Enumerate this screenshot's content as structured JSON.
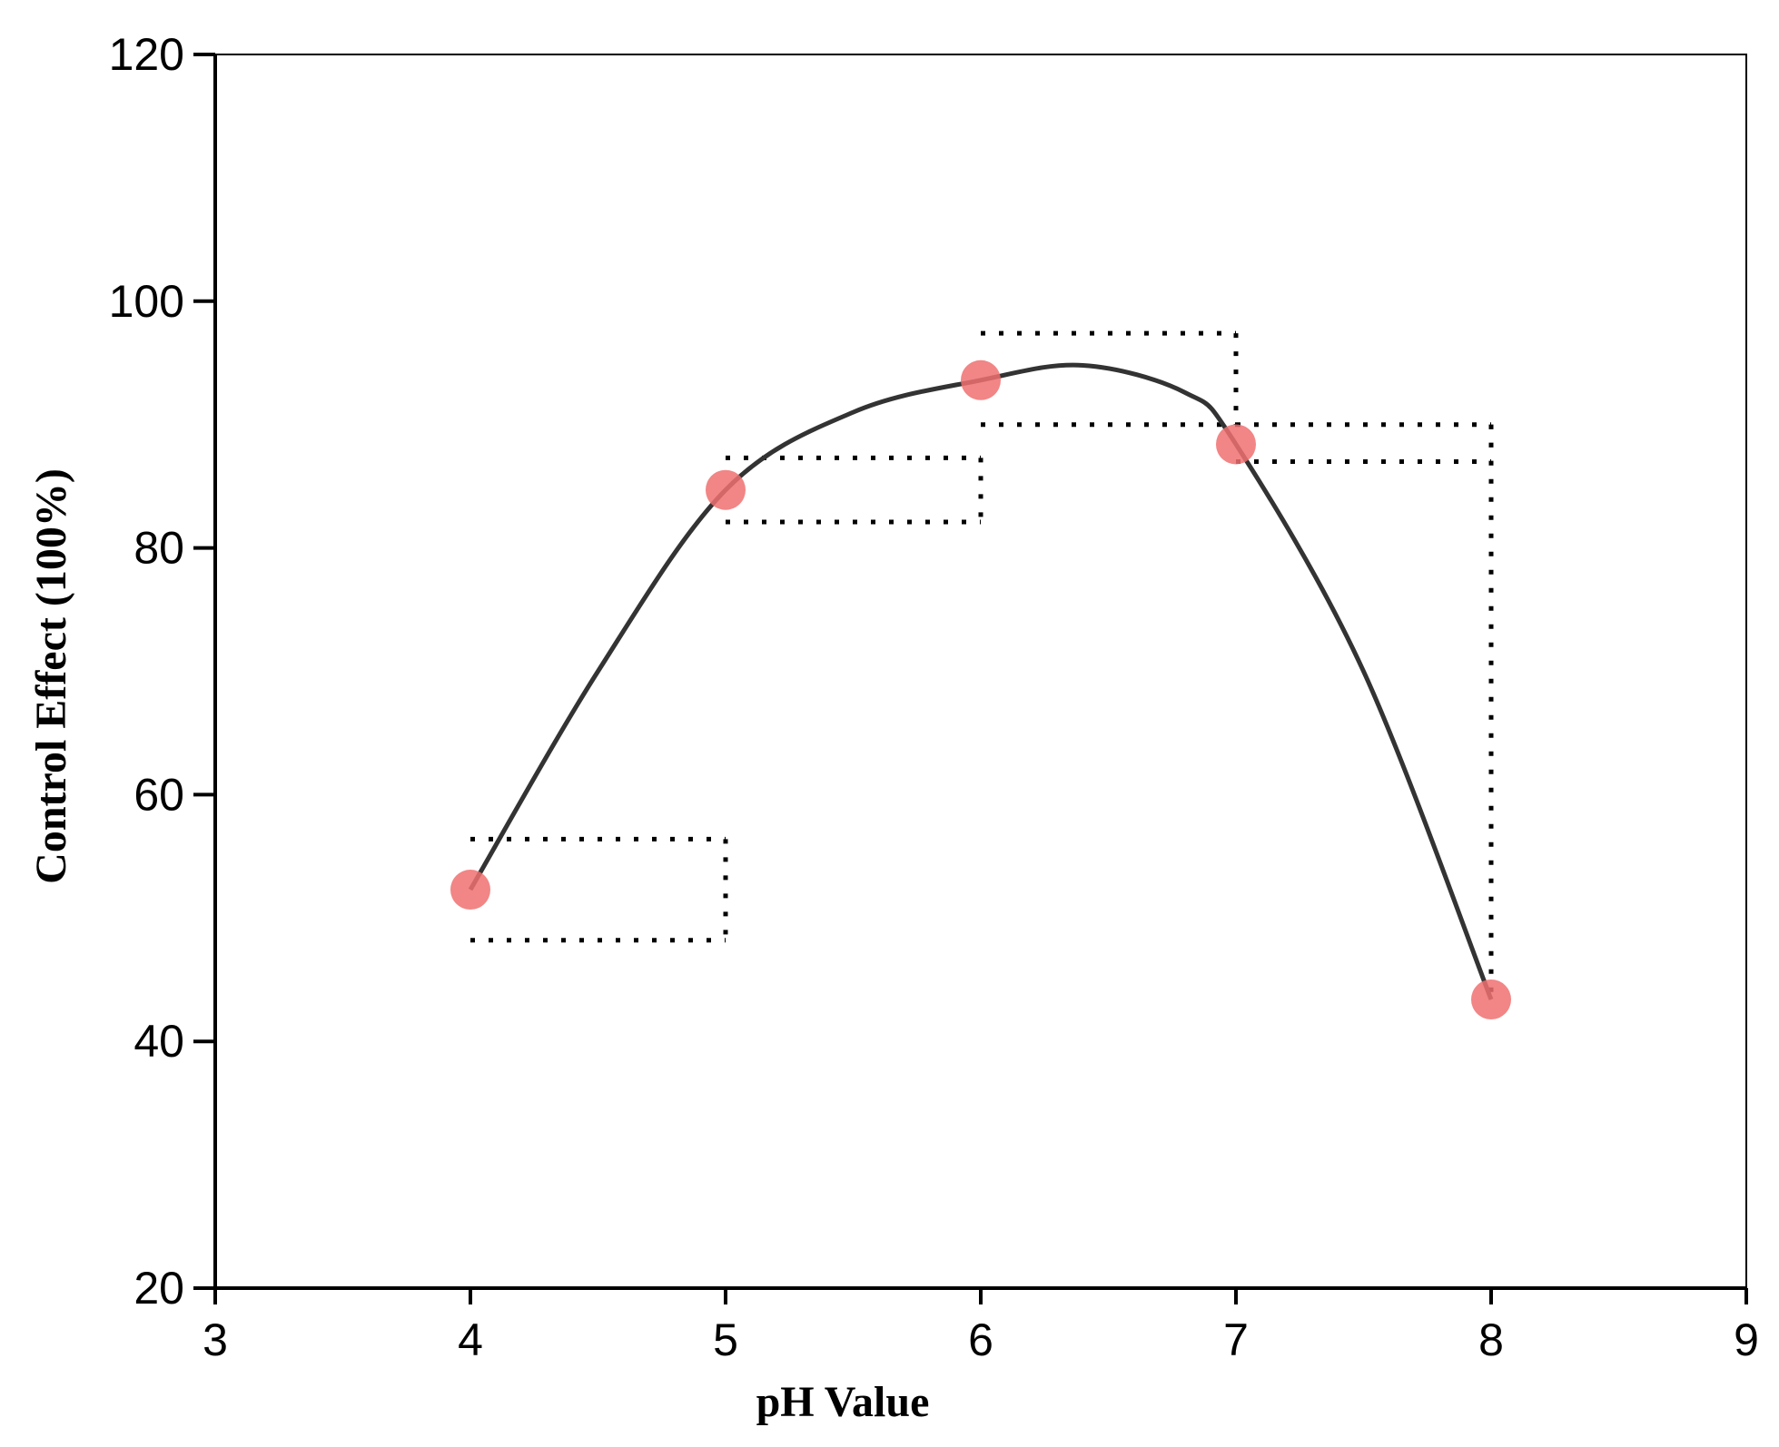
{
  "chart_data": {
    "type": "line",
    "title": "",
    "xlabel": "pH Value",
    "ylabel": "Control Effect (100%)",
    "xlim": [
      3,
      9
    ],
    "ylim": [
      20,
      120
    ],
    "xticks": [
      3,
      4,
      5,
      6,
      7,
      8,
      9
    ],
    "yticks": [
      20,
      40,
      60,
      80,
      100,
      120
    ],
    "grid": false,
    "legend": "none",
    "colors": {
      "points": "#f07070",
      "curve": "#333333",
      "error_lines": "#000000"
    },
    "series": [
      {
        "type": "scatter",
        "x": [
          4,
          5,
          6,
          7,
          8
        ],
        "y": [
          52.3,
          84.7,
          93.6,
          88.4,
          43.4
        ],
        "y_error_low": [
          48.2,
          82.1,
          90.0,
          87.0,
          43.4
        ],
        "y_error_high": [
          56.4,
          87.3,
          97.4,
          90.0,
          90.0
        ]
      },
      {
        "type": "fit-curve",
        "x": [
          4.0,
          4.5,
          5.0,
          5.5,
          6.0,
          6.4,
          6.8,
          7.0,
          7.5,
          8.0
        ],
        "y": [
          52.3,
          70.0,
          84.7,
          91.0,
          93.6,
          94.8,
          92.6,
          88.4,
          70.0,
          43.4
        ]
      }
    ]
  }
}
